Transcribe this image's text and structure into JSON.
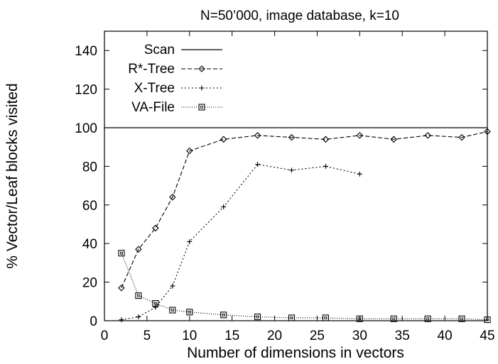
{
  "chart_data": {
    "type": "line",
    "title": "N=50’000, image database, k=10",
    "xlabel": "Number of dimensions in vectors",
    "ylabel": "% Vector/Leaf blocks visited",
    "xlim": [
      0,
      45
    ],
    "ylim": [
      0,
      150
    ],
    "xticks": [
      0,
      5,
      10,
      15,
      20,
      25,
      30,
      35,
      40,
      45
    ],
    "yticks": [
      0,
      20,
      40,
      60,
      80,
      100,
      120,
      140
    ],
    "grid": false,
    "legend_position": "top-left",
    "series": [
      {
        "name": "Scan",
        "marker": "none",
        "dash": "solid",
        "points": [
          [
            0,
            100
          ],
          [
            45,
            100
          ]
        ]
      },
      {
        "name": "R*-Tree",
        "marker": "diamond",
        "dash": "dashed",
        "points": [
          [
            2,
            17
          ],
          [
            4,
            37
          ],
          [
            6,
            48
          ],
          [
            8,
            64
          ],
          [
            10,
            88
          ],
          [
            14,
            94
          ],
          [
            18,
            96
          ],
          [
            22,
            95
          ],
          [
            26,
            94
          ],
          [
            30,
            96
          ],
          [
            34,
            94
          ],
          [
            38,
            96
          ],
          [
            42,
            95
          ],
          [
            45,
            98
          ]
        ]
      },
      {
        "name": "X-Tree",
        "marker": "plus",
        "dash": "dotted",
        "points": [
          [
            2,
            0.5
          ],
          [
            4,
            2
          ],
          [
            6,
            7
          ],
          [
            8,
            18
          ],
          [
            10,
            41
          ],
          [
            14,
            59
          ],
          [
            18,
            81
          ],
          [
            22,
            78
          ],
          [
            26,
            80
          ],
          [
            30,
            76
          ]
        ]
      },
      {
        "name": "VA-File",
        "marker": "square",
        "dash": "finedotted",
        "points": [
          [
            2,
            35
          ],
          [
            4,
            13
          ],
          [
            6,
            9
          ],
          [
            8,
            5.5
          ],
          [
            10,
            4.5
          ],
          [
            14,
            3
          ],
          [
            18,
            2
          ],
          [
            22,
            1.5
          ],
          [
            26,
            1.5
          ],
          [
            30,
            1
          ],
          [
            34,
            1
          ],
          [
            38,
            1
          ],
          [
            42,
            1
          ],
          [
            45,
            0.5
          ]
        ]
      }
    ]
  }
}
